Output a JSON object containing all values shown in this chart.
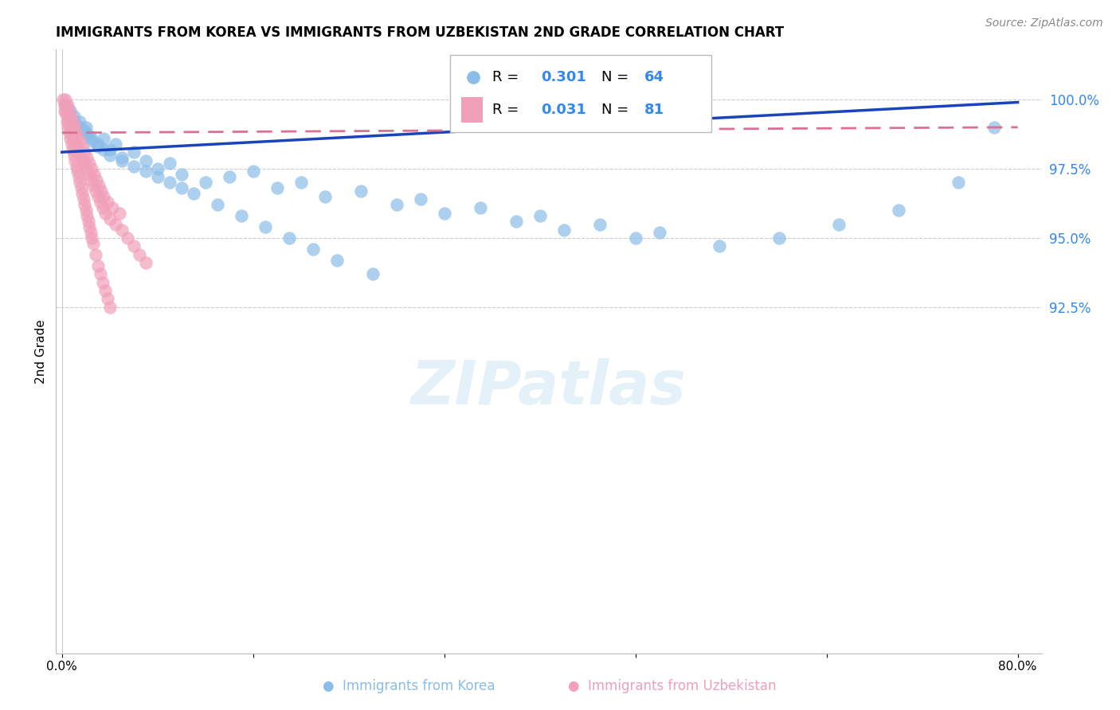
{
  "title": "IMMIGRANTS FROM KOREA VS IMMIGRANTS FROM UZBEKISTAN 2ND GRADE CORRELATION CHART",
  "source": "Source: ZipAtlas.com",
  "ylabel": "2nd Grade",
  "right_yticks": [
    100.0,
    97.5,
    95.0,
    92.5
  ],
  "ymin": 80.0,
  "ymax": 101.8,
  "xmin": -0.5,
  "xmax": 82.0,
  "korea_color": "#8abde8",
  "uzbek_color": "#f0a0b8",
  "korea_line_color": "#1a44bb",
  "uzbek_line_color": "#dd7090",
  "blue_text_color": "#3388ee",
  "watermark_text": "ZIPatlas",
  "legend_korea_R": "0.301",
  "legend_korea_N": "64",
  "legend_uzbek_R": "0.031",
  "legend_uzbek_N": "81",
  "korea_x": [
    0.3,
    0.5,
    0.7,
    0.8,
    1.0,
    1.2,
    1.5,
    1.8,
    2.0,
    2.2,
    2.5,
    3.0,
    3.5,
    4.0,
    4.5,
    5.0,
    6.0,
    7.0,
    8.0,
    9.0,
    10.0,
    12.0,
    14.0,
    16.0,
    18.0,
    20.0,
    22.0,
    25.0,
    28.0,
    30.0,
    32.0,
    35.0,
    38.0,
    40.0,
    42.0,
    45.0,
    48.0,
    50.0,
    55.0,
    60.0,
    65.0,
    70.0,
    75.0,
    78.0,
    1.5,
    2.0,
    2.5,
    3.0,
    3.5,
    4.0,
    5.0,
    6.0,
    7.0,
    8.0,
    9.0,
    10.0,
    11.0,
    13.0,
    15.0,
    17.0,
    19.0,
    21.0,
    23.0,
    26.0
  ],
  "korea_y": [
    99.8,
    99.5,
    99.6,
    99.3,
    99.4,
    99.1,
    99.2,
    98.9,
    99.0,
    98.7,
    98.5,
    98.3,
    98.6,
    98.2,
    98.4,
    97.9,
    98.1,
    97.8,
    97.5,
    97.7,
    97.3,
    97.0,
    97.2,
    97.4,
    96.8,
    97.0,
    96.5,
    96.7,
    96.2,
    96.4,
    95.9,
    96.1,
    95.6,
    95.8,
    95.3,
    95.5,
    95.0,
    95.2,
    94.7,
    95.0,
    95.5,
    96.0,
    97.0,
    99.0,
    99.0,
    98.8,
    98.6,
    98.4,
    98.2,
    98.0,
    97.8,
    97.6,
    97.4,
    97.2,
    97.0,
    96.8,
    96.6,
    96.2,
    95.8,
    95.4,
    95.0,
    94.6,
    94.2,
    93.7
  ],
  "uzbek_x": [
    0.1,
    0.2,
    0.3,
    0.3,
    0.4,
    0.5,
    0.5,
    0.6,
    0.7,
    0.8,
    0.8,
    0.9,
    1.0,
    1.0,
    1.1,
    1.2,
    1.3,
    1.4,
    1.5,
    1.6,
    1.7,
    1.8,
    1.9,
    2.0,
    2.1,
    2.2,
    2.3,
    2.4,
    2.5,
    2.6,
    2.7,
    2.8,
    2.9,
    3.0,
    3.1,
    3.2,
    3.3,
    3.4,
    3.5,
    3.6,
    3.8,
    4.0,
    4.2,
    4.5,
    4.8,
    5.0,
    5.5,
    6.0,
    6.5,
    7.0,
    0.2,
    0.4,
    0.6,
    0.8,
    1.0,
    1.2,
    1.4,
    1.6,
    1.8,
    2.0,
    2.2,
    2.4,
    2.6,
    2.8,
    3.0,
    3.2,
    3.4,
    3.6,
    3.8,
    4.0,
    0.5,
    0.7,
    0.9,
    1.1,
    1.3,
    1.5,
    1.7,
    1.9,
    2.1,
    2.3,
    2.5
  ],
  "uzbek_y": [
    100.0,
    99.8,
    100.0,
    99.5,
    99.7,
    99.3,
    99.8,
    99.1,
    99.5,
    98.9,
    99.3,
    98.7,
    99.1,
    98.5,
    98.9,
    98.3,
    98.7,
    98.1,
    98.5,
    97.9,
    98.3,
    97.7,
    98.1,
    97.5,
    97.9,
    97.3,
    97.7,
    97.1,
    97.5,
    96.9,
    97.3,
    96.7,
    97.1,
    96.5,
    96.9,
    96.3,
    96.7,
    96.1,
    96.5,
    95.9,
    96.3,
    95.7,
    96.1,
    95.5,
    95.9,
    95.3,
    95.0,
    94.7,
    94.4,
    94.1,
    99.6,
    99.2,
    98.8,
    98.4,
    98.0,
    97.6,
    97.2,
    96.8,
    96.4,
    96.0,
    95.6,
    95.2,
    94.8,
    94.4,
    94.0,
    93.7,
    93.4,
    93.1,
    92.8,
    92.5,
    99.0,
    98.6,
    98.2,
    97.8,
    97.4,
    97.0,
    96.6,
    96.2,
    95.8,
    95.4,
    95.0
  ]
}
